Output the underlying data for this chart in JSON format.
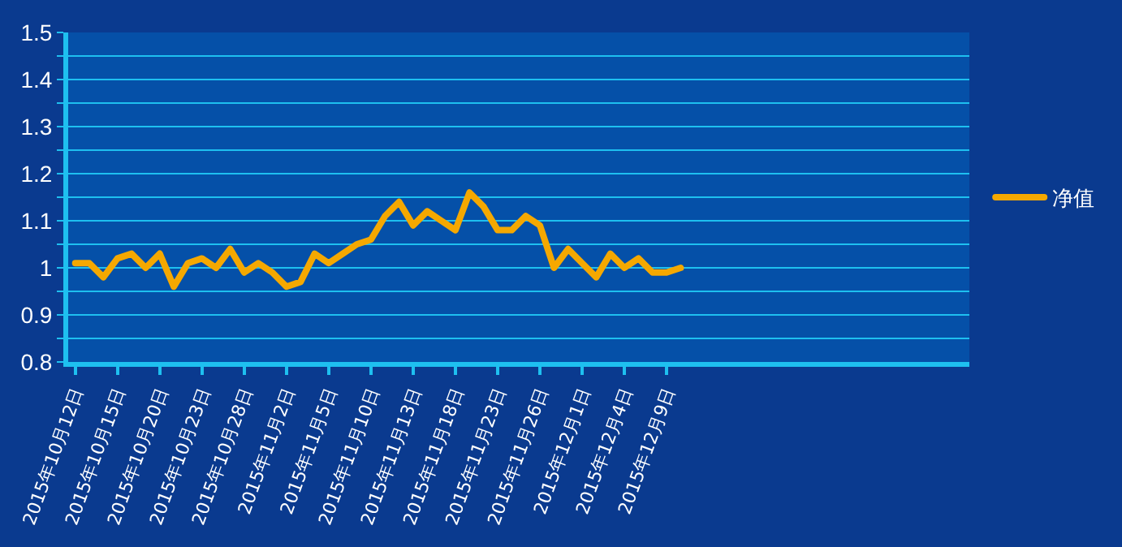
{
  "chart_data": {
    "type": "line",
    "categories": [
      "2015年10月12日",
      null,
      null,
      "2015年10月15日",
      null,
      null,
      "2015年10月20日",
      null,
      null,
      "2015年10月23日",
      null,
      null,
      "2015年10月28日",
      null,
      null,
      "2015年11月2日",
      null,
      null,
      "2015年11月5日",
      null,
      null,
      "2015年11月10日",
      null,
      null,
      "2015年11月13日",
      null,
      null,
      "2015年11月18日",
      null,
      null,
      "2015年11月23日",
      null,
      null,
      "2015年11月26日",
      null,
      null,
      "2015年12月1日",
      null,
      null,
      "2015年12月4日",
      null,
      null,
      "2015年12月9日",
      null,
      null,
      null,
      null,
      null,
      null,
      null,
      null,
      null,
      null,
      null,
      null,
      null,
      null,
      null,
      null,
      null,
      null,
      null,
      null,
      null
    ],
    "series": [
      {
        "name": "净值",
        "color": "#f5a800",
        "values": [
          1.01,
          1.01,
          0.98,
          1.02,
          1.03,
          1.0,
          1.03,
          0.96,
          1.01,
          1.02,
          1.0,
          1.04,
          0.99,
          1.01,
          0.99,
          0.96,
          0.97,
          1.03,
          1.01,
          1.03,
          1.05,
          1.06,
          1.11,
          1.14,
          1.09,
          1.12,
          1.1,
          1.08,
          1.16,
          1.13,
          1.08,
          1.08,
          1.11,
          1.09,
          1.0,
          1.04,
          1.01,
          0.98,
          1.03,
          1.0,
          1.02,
          0.99,
          0.99,
          1.0,
          null,
          null,
          null,
          null,
          null,
          null,
          null,
          null,
          null,
          null,
          null,
          null,
          null,
          null,
          null,
          null,
          null,
          null,
          null,
          null
        ]
      }
    ],
    "ylim": [
      0.8,
      1.5
    ],
    "yticks": [
      0.8,
      {
        "value": 0.85,
        "label": null
      },
      0.9,
      {
        "value": 0.95,
        "label": null
      },
      1,
      {
        "value": 1.05,
        "label": null
      },
      1.1,
      {
        "value": 1.15,
        "label": null
      },
      1.2,
      {
        "value": 1.25,
        "label": null
      },
      1.3,
      {
        "value": 1.35,
        "label": null
      },
      1.4,
      {
        "value": 1.45,
        "label": null
      },
      1.5
    ],
    "grid": "y",
    "legend": "right",
    "marker": "none",
    "line_style": "solid"
  }
}
